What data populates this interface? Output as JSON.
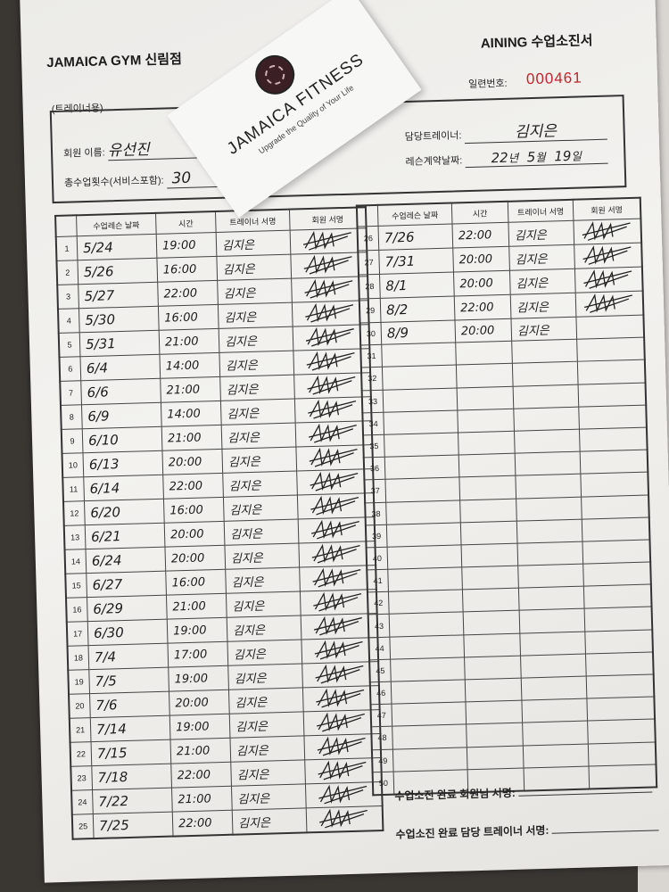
{
  "header": {
    "gym_name": "JAMAICA GYM 신림점",
    "form_title": "AINING 수업소진서",
    "trainer_use": "(트레이너용)",
    "serial_label": "일련번호:",
    "serial_number": "000461"
  },
  "info": {
    "member_name_label": "회원 이름:",
    "member_name": "유선진",
    "total_sessions_label": "총수업횟수(서비스포함):",
    "total_sessions": "30",
    "trainer_label": "담당트레이너:",
    "trainer": "김지은",
    "contract_date_label": "레슨계약날짜:",
    "contract_date": {
      "year": "22",
      "year_unit": "년",
      "month": "5",
      "month_unit": "월",
      "day": "19",
      "day_unit": "일"
    }
  },
  "card": {
    "brand": "JAMAICA FITNESS",
    "tagline": "Upgrade the Quality of Your Life"
  },
  "table": {
    "columns": [
      "",
      "수업레슨 날짜",
      "시간",
      "트레이너 서명",
      "회원 서명"
    ],
    "rows": [
      {
        "no": "1",
        "date": "5/24",
        "time": "19:00",
        "trainer": "김지은",
        "signed": true
      },
      {
        "no": "2",
        "date": "5/26",
        "time": "16:00",
        "trainer": "김지은",
        "signed": true
      },
      {
        "no": "3",
        "date": "5/27",
        "time": "22:00",
        "trainer": "김지은",
        "signed": true
      },
      {
        "no": "4",
        "date": "5/30",
        "time": "16:00",
        "trainer": "김지은",
        "signed": true
      },
      {
        "no": "5",
        "date": "5/31",
        "time": "21:00",
        "trainer": "김지은",
        "signed": true
      },
      {
        "no": "6",
        "date": "6/4",
        "time": "14:00",
        "trainer": "김지은",
        "signed": true
      },
      {
        "no": "7",
        "date": "6/6",
        "time": "21:00",
        "trainer": "김지은",
        "signed": true
      },
      {
        "no": "8",
        "date": "6/9",
        "time": "14:00",
        "trainer": "김지은",
        "signed": true
      },
      {
        "no": "9",
        "date": "6/10",
        "time": "21:00",
        "trainer": "김지은",
        "signed": true
      },
      {
        "no": "10",
        "date": "6/13",
        "time": "20:00",
        "trainer": "김지은",
        "signed": true
      },
      {
        "no": "11",
        "date": "6/14",
        "time": "22:00",
        "trainer": "김지은",
        "signed": true
      },
      {
        "no": "12",
        "date": "6/20",
        "time": "16:00",
        "trainer": "김지은",
        "signed": true
      },
      {
        "no": "13",
        "date": "6/21",
        "time": "20:00",
        "trainer": "김지은",
        "signed": true
      },
      {
        "no": "14",
        "date": "6/24",
        "time": "20:00",
        "trainer": "김지은",
        "signed": true
      },
      {
        "no": "15",
        "date": "6/27",
        "time": "16:00",
        "trainer": "김지은",
        "signed": true
      },
      {
        "no": "16",
        "date": "6/29",
        "time": "21:00",
        "trainer": "김지은",
        "signed": true
      },
      {
        "no": "17",
        "date": "6/30",
        "time": "19:00",
        "trainer": "김지은",
        "signed": true
      },
      {
        "no": "18",
        "date": "7/4",
        "time": "17:00",
        "trainer": "김지은",
        "signed": true
      },
      {
        "no": "19",
        "date": "7/5",
        "time": "19:00",
        "trainer": "김지은",
        "signed": true
      },
      {
        "no": "20",
        "date": "7/6",
        "time": "20:00",
        "trainer": "김지은",
        "signed": true
      },
      {
        "no": "21",
        "date": "7/14",
        "time": "19:00",
        "trainer": "김지은",
        "signed": true
      },
      {
        "no": "22",
        "date": "7/15",
        "time": "21:00",
        "trainer": "김지은",
        "signed": true
      },
      {
        "no": "23",
        "date": "7/18",
        "time": "22:00",
        "trainer": "김지은",
        "signed": true
      },
      {
        "no": "24",
        "date": "7/22",
        "time": "21:00",
        "trainer": "김지은",
        "signed": true
      },
      {
        "no": "25",
        "date": "7/25",
        "time": "22:00",
        "trainer": "김지은",
        "signed": true
      },
      {
        "no": "26",
        "date": "7/26",
        "time": "22:00",
        "trainer": "김지은",
        "signed": true
      },
      {
        "no": "27",
        "date": "7/31",
        "time": "20:00",
        "trainer": "김지은",
        "signed": true
      },
      {
        "no": "28",
        "date": "8/1",
        "time": "20:00",
        "trainer": "김지은",
        "signed": true
      },
      {
        "no": "29",
        "date": "8/2",
        "time": "22:00",
        "trainer": "김지은",
        "signed": true
      },
      {
        "no": "30",
        "date": "8/9",
        "time": "20:00",
        "trainer": "김지은",
        "signed": false
      },
      {
        "no": "31"
      },
      {
        "no": "32"
      },
      {
        "no": "33"
      },
      {
        "no": "34"
      },
      {
        "no": "35"
      },
      {
        "no": "36"
      },
      {
        "no": "37"
      },
      {
        "no": "38"
      },
      {
        "no": "39"
      },
      {
        "no": "40"
      },
      {
        "no": "41"
      },
      {
        "no": "42"
      },
      {
        "no": "43"
      },
      {
        "no": "44"
      },
      {
        "no": "45"
      },
      {
        "no": "46"
      },
      {
        "no": "47"
      },
      {
        "no": "48"
      },
      {
        "no": "49"
      },
      {
        "no": "50"
      }
    ]
  },
  "footer": {
    "member_sign_label": "수업소진 완료 회원님 서명:",
    "trainer_sign_label": "수업소진 완료 담당 트레이너 서명:"
  }
}
